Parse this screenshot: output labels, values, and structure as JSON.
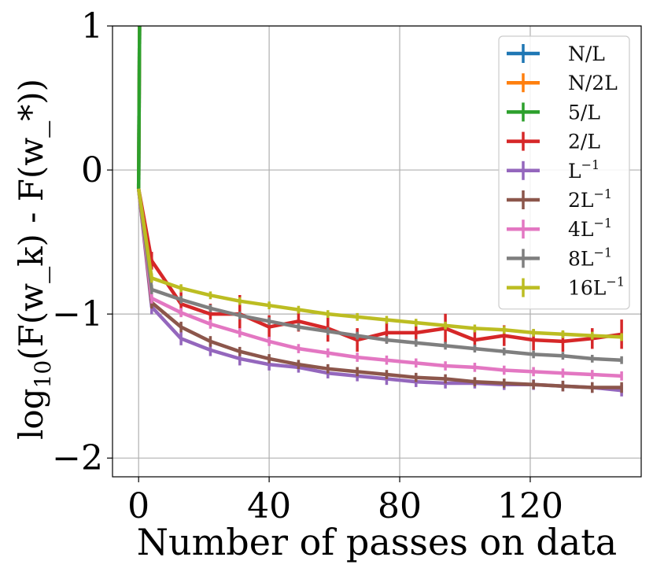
{
  "chart_data": {
    "type": "line",
    "title": "",
    "xlabel": "Number of passes on data",
    "ylabel": "log10(F(w_k) - F(w_*))",
    "xlim": [
      -8,
      154
    ],
    "ylim": [
      -2.13,
      1.0
    ],
    "xticks": [
      0,
      40,
      80,
      120
    ],
    "xtick_labels": [
      "0",
      "40",
      "80",
      "120"
    ],
    "yticks": [
      1,
      0,
      -1,
      -2
    ],
    "ytick_labels": [
      "1",
      "0",
      "−1",
      "−2"
    ],
    "grid": true,
    "legend_position": "top-right",
    "series": [
      {
        "name": "N/L",
        "label_base": "N/L",
        "label_sup": "",
        "color": "#1f77b4",
        "x": [
          0,
          0.3
        ],
        "y": [
          -0.13,
          1.0
        ]
      },
      {
        "name": "N/2L",
        "label_base": "N/2L",
        "label_sup": "",
        "color": "#ff7f0e",
        "x": [
          0,
          0.3
        ],
        "y": [
          -0.13,
          1.0
        ]
      },
      {
        "name": "5/L",
        "label_base": "5/L",
        "label_sup": "",
        "color": "#2ca02c",
        "x": [
          0,
          0.3
        ],
        "y": [
          -0.13,
          1.0
        ]
      },
      {
        "name": "2/L",
        "label_base": "2/L",
        "label_sup": "",
        "color": "#d62728",
        "x": [
          0,
          4,
          13,
          22,
          31,
          40,
          49,
          58,
          67,
          76,
          85,
          94,
          103,
          112,
          121,
          130,
          139,
          148
        ],
        "y": [
          -0.13,
          -0.63,
          -0.93,
          -1.0,
          -1.0,
          -1.09,
          -1.05,
          -1.1,
          -1.18,
          -1.13,
          -1.13,
          -1.1,
          -1.18,
          -1.15,
          -1.18,
          -1.19,
          -1.17,
          -1.14
        ],
        "err": [
          0,
          0.04,
          0.06,
          0.05,
          0.11,
          0.06,
          0.05,
          0.07,
          0.06,
          0.05,
          0.05,
          0.08,
          0.04,
          0.05,
          0.05,
          0.05,
          0.05,
          0.08
        ]
      },
      {
        "name": "L^-1",
        "label_base": "L",
        "label_sup": "−1",
        "color": "#9467bd",
        "x": [
          0,
          4,
          13,
          22,
          31,
          40,
          49,
          58,
          67,
          76,
          85,
          94,
          103,
          112,
          121,
          130,
          139,
          148
        ],
        "y": [
          -0.13,
          -0.95,
          -1.17,
          -1.25,
          -1.31,
          -1.35,
          -1.37,
          -1.41,
          -1.43,
          -1.45,
          -1.47,
          -1.48,
          -1.48,
          -1.49,
          -1.49,
          -1.5,
          -1.51,
          -1.53
        ],
        "err": [
          0,
          0.03,
          0.025,
          0.02,
          0.025,
          0.02,
          0.015,
          0.015,
          0.015,
          0.02,
          0.015,
          0.015,
          0.015,
          0.015,
          0.015,
          0.015,
          0.015,
          0.02
        ]
      },
      {
        "name": "2L^-1",
        "label_base": "2L",
        "label_sup": "−1",
        "color": "#8c564b",
        "x": [
          0,
          4,
          13,
          22,
          31,
          40,
          49,
          58,
          67,
          76,
          85,
          94,
          103,
          112,
          121,
          130,
          139,
          148
        ],
        "y": [
          -0.13,
          -0.92,
          -1.09,
          -1.19,
          -1.26,
          -1.31,
          -1.35,
          -1.38,
          -1.4,
          -1.42,
          -1.44,
          -1.45,
          -1.47,
          -1.48,
          -1.49,
          -1.5,
          -1.51,
          -1.51
        ],
        "err": [
          0,
          0.02,
          0.015,
          0.015,
          0.01,
          0.01,
          0.01,
          0.01,
          0.01,
          0.01,
          0.01,
          0.01,
          0.01,
          0.01,
          0.01,
          0.015,
          0.015,
          0.015
        ]
      },
      {
        "name": "4L^-1",
        "label_base": "4L",
        "label_sup": "−1",
        "color": "#e377c2",
        "x": [
          0,
          4,
          13,
          22,
          31,
          40,
          49,
          58,
          67,
          76,
          85,
          94,
          103,
          112,
          121,
          130,
          139,
          148
        ],
        "y": [
          -0.13,
          -0.89,
          -0.99,
          -1.07,
          -1.13,
          -1.19,
          -1.24,
          -1.27,
          -1.3,
          -1.32,
          -1.34,
          -1.36,
          -1.37,
          -1.39,
          -1.4,
          -1.41,
          -1.42,
          -1.43
        ],
        "err": [
          0,
          0.015,
          0.01,
          0.01,
          0.01,
          0.01,
          0.01,
          0.01,
          0.01,
          0.01,
          0.01,
          0.01,
          0.01,
          0.01,
          0.01,
          0.01,
          0.01,
          0.01
        ]
      },
      {
        "name": "8L^-1",
        "label_base": "8L",
        "label_sup": "−1",
        "color": "#7f7f7f",
        "x": [
          0,
          4,
          13,
          22,
          31,
          40,
          49,
          58,
          67,
          76,
          85,
          94,
          103,
          112,
          121,
          130,
          139,
          148
        ],
        "y": [
          -0.13,
          -0.83,
          -0.9,
          -0.96,
          -1.01,
          -1.05,
          -1.09,
          -1.12,
          -1.15,
          -1.18,
          -1.2,
          -1.22,
          -1.24,
          -1.26,
          -1.28,
          -1.29,
          -1.31,
          -1.32
        ],
        "err": [
          0,
          0.01,
          0.005,
          0.005,
          0.005,
          0.005,
          0.005,
          0.005,
          0.005,
          0.005,
          0.005,
          0.005,
          0.005,
          0.005,
          0.005,
          0.005,
          0.005,
          0.005
        ]
      },
      {
        "name": "16L^-1",
        "label_base": "16L",
        "label_sup": "−1",
        "color": "#bcbd22",
        "x": [
          0,
          4,
          13,
          22,
          31,
          40,
          49,
          58,
          67,
          76,
          85,
          94,
          103,
          112,
          121,
          130,
          139,
          148
        ],
        "y": [
          -0.13,
          -0.75,
          -0.82,
          -0.87,
          -0.91,
          -0.94,
          -0.97,
          -1.0,
          -1.02,
          -1.04,
          -1.06,
          -1.08,
          -1.1,
          -1.11,
          -1.13,
          -1.14,
          -1.15,
          -1.16
        ],
        "err": [
          0,
          0.01,
          0.005,
          0.005,
          0.005,
          0.005,
          0.005,
          0.005,
          0.005,
          0.005,
          0.005,
          0.005,
          0.005,
          0.005,
          0.005,
          0.005,
          0.005,
          0.005
        ]
      }
    ]
  }
}
